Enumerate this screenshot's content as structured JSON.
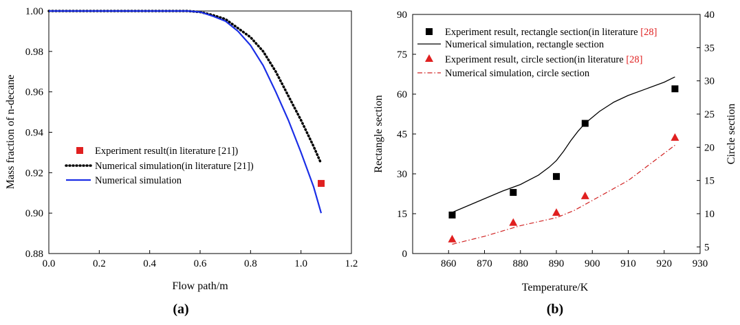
{
  "chart_data": [
    {
      "type": "line",
      "panel_label": "(a)",
      "xlabel": "Flow path/m",
      "ylabel": "Mass fraction of n-decane",
      "xlim": [
        0.0,
        1.2
      ],
      "ylim": [
        0.88,
        1.0
      ],
      "xticks": [
        "0.0",
        "0.2",
        "0.4",
        "0.6",
        "0.8",
        "1.0",
        "1.2"
      ],
      "yticks": [
        "0.88",
        "0.90",
        "0.92",
        "0.94",
        "0.96",
        "0.98",
        "1.00"
      ],
      "legend_position": "lower-left",
      "series": [
        {
          "name": "Experiment result(in literature [21])",
          "style": "scatter-square",
          "color": "#e02020",
          "x": [
            1.08
          ],
          "y": [
            0.9147
          ]
        },
        {
          "name": "Numerical simulation(in literature [21])",
          "style": "dotted",
          "color": "#000000",
          "x": [
            0.0,
            0.55,
            0.6,
            0.65,
            0.7,
            0.75,
            0.8,
            0.85,
            0.9,
            0.95,
            1.0,
            1.05,
            1.08
          ],
          "y": [
            1.0,
            1.0,
            0.9995,
            0.998,
            0.996,
            0.9915,
            0.987,
            0.98,
            0.97,
            0.958,
            0.946,
            0.933,
            0.9245
          ]
        },
        {
          "name": "Numerical simulation",
          "style": "solid",
          "color": "#1a2ee6",
          "x": [
            0.0,
            0.55,
            0.6,
            0.65,
            0.7,
            0.75,
            0.8,
            0.85,
            0.9,
            0.95,
            1.0,
            1.05,
            1.08
          ],
          "y": [
            1.0,
            1.0,
            0.9995,
            0.9975,
            0.995,
            0.99,
            0.983,
            0.973,
            0.96,
            0.946,
            0.93,
            0.913,
            0.9
          ]
        }
      ]
    },
    {
      "type": "scatter",
      "panel_label": "(b)",
      "xlabel": "Temperature/K",
      "ylabel": "Rectangle section",
      "y2label": "Circle section",
      "xlim": [
        850,
        930
      ],
      "ylim": [
        0,
        90
      ],
      "y2lim": [
        4,
        40
      ],
      "xticks": [
        "860",
        "870",
        "880",
        "890",
        "900",
        "910",
        "920",
        "930"
      ],
      "yticks": [
        "0",
        "15",
        "30",
        "45",
        "60",
        "75",
        "90"
      ],
      "y2ticks": [
        "5",
        "10",
        "15",
        "20",
        "25",
        "30",
        "35",
        "40"
      ],
      "legend_position": "top-left",
      "series": [
        {
          "name": "Experiment result, rectangle section(in literature",
          "ref": "[28]",
          "style": "scatter-square",
          "color": "#000000",
          "axis": "left",
          "x": [
            861,
            878,
            890,
            898,
            923
          ],
          "y": [
            14.5,
            23,
            29,
            49,
            62
          ]
        },
        {
          "name": "Numerical simulation, rectangle section",
          "style": "solid",
          "color": "#000000",
          "axis": "left",
          "x": [
            861,
            868,
            875,
            880,
            885,
            888,
            890,
            892,
            894,
            896,
            898,
            902,
            906,
            910,
            915,
            920,
            923
          ],
          "y": [
            15.5,
            19.5,
            23.5,
            26,
            29.5,
            32.5,
            35,
            38.5,
            42.5,
            46,
            49,
            53.5,
            57,
            59.5,
            62,
            64.5,
            66.5
          ]
        },
        {
          "name": "Experiment result, circle section(in literature",
          "ref": "[28]",
          "style": "scatter-triangle",
          "color": "#e02020",
          "axis": "right",
          "x": [
            861,
            878,
            890,
            898,
            923
          ],
          "y": [
            6.2,
            8.7,
            10.2,
            12.7,
            21.5
          ]
        },
        {
          "name": "Numerical simulation, circle section",
          "style": "dashdot",
          "color": "#d02020",
          "axis": "right",
          "x": [
            861,
            870,
            880,
            890,
            895,
            900,
            910,
            923
          ],
          "y": [
            5.4,
            6.6,
            8.2,
            9.4,
            10.5,
            12.0,
            15.0,
            20.3
          ]
        }
      ]
    }
  ]
}
